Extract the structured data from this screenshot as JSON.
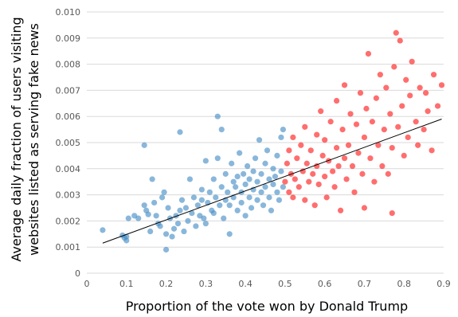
{
  "chart_data": {
    "type": "scatter",
    "xlabel": "Proportion of the vote won by Donald Trump",
    "ylabel_lines": [
      "Average daily fraction of users visiting",
      "websites listed as serving fake news"
    ],
    "xlim": [
      0,
      0.9
    ],
    "ylim": [
      0,
      0.01
    ],
    "x_ticks": [
      "0",
      "0.1",
      "0.2",
      "0.3",
      "0.4",
      "0.5",
      "0.6",
      "0.7",
      "0.8",
      "0.9"
    ],
    "y_ticks": [
      "0",
      "0.001",
      "0.002",
      "0.003",
      "0.004",
      "0.005",
      "0.006",
      "0.007",
      "0.008",
      "0.009",
      "0.010"
    ],
    "grid": "horizontal",
    "colors": {
      "below_half": "#4a90c8",
      "above_half": "#ff2020",
      "trend": "#000000"
    },
    "trendline": {
      "x": [
        0.04,
        0.895
      ],
      "y": [
        0.00115,
        0.0059
      ]
    },
    "series": [
      {
        "color": "#4a90c8",
        "points": [
          [
            0.04,
            0.00165
          ],
          [
            0.09,
            0.00145
          ],
          [
            0.095,
            0.00135
          ],
          [
            0.1,
            0.00125
          ],
          [
            0.1,
            0.0014
          ],
          [
            0.105,
            0.0021
          ],
          [
            0.12,
            0.0022
          ],
          [
            0.13,
            0.0021
          ],
          [
            0.145,
            0.0049
          ],
          [
            0.145,
            0.0026
          ],
          [
            0.15,
            0.0024
          ],
          [
            0.155,
            0.00225
          ],
          [
            0.16,
            0.0016
          ],
          [
            0.165,
            0.0036
          ],
          [
            0.17,
            0.0027
          ],
          [
            0.175,
            0.0022
          ],
          [
            0.18,
            0.0019
          ],
          [
            0.185,
            0.0018
          ],
          [
            0.19,
            0.0029
          ],
          [
            0.195,
            0.0031
          ],
          [
            0.2,
            0.0015
          ],
          [
            0.2,
            0.0009
          ],
          [
            0.205,
            0.0025
          ],
          [
            0.21,
            0.0021
          ],
          [
            0.215,
            0.0014
          ],
          [
            0.22,
            0.0017
          ],
          [
            0.225,
            0.0022
          ],
          [
            0.23,
            0.0019
          ],
          [
            0.235,
            0.0054
          ],
          [
            0.235,
            0.0024
          ],
          [
            0.24,
            0.0028
          ],
          [
            0.245,
            0.0016
          ],
          [
            0.25,
            0.0025
          ],
          [
            0.255,
            0.002
          ],
          [
            0.26,
            0.0036
          ],
          [
            0.265,
            0.0023
          ],
          [
            0.27,
            0.0029
          ],
          [
            0.275,
            0.0018
          ],
          [
            0.28,
            0.0026
          ],
          [
            0.285,
            0.0022
          ],
          [
            0.29,
            0.0032
          ],
          [
            0.29,
            0.0028
          ],
          [
            0.295,
            0.0021
          ],
          [
            0.3,
            0.0019
          ],
          [
            0.3,
            0.0043
          ],
          [
            0.305,
            0.0027
          ],
          [
            0.31,
            0.0031
          ],
          [
            0.315,
            0.0024
          ],
          [
            0.32,
            0.0036
          ],
          [
            0.32,
            0.0023
          ],
          [
            0.325,
            0.0029
          ],
          [
            0.33,
            0.0044
          ],
          [
            0.33,
            0.006
          ],
          [
            0.335,
            0.0026
          ],
          [
            0.34,
            0.0055
          ],
          [
            0.34,
            0.0033
          ],
          [
            0.345,
            0.0021
          ],
          [
            0.35,
            0.0038
          ],
          [
            0.35,
            0.0028
          ],
          [
            0.355,
            0.0031
          ],
          [
            0.36,
            0.0015
          ],
          [
            0.36,
            0.0026
          ],
          [
            0.365,
            0.0042
          ],
          [
            0.37,
            0.0035
          ],
          [
            0.37,
            0.0029
          ],
          [
            0.375,
            0.0033
          ],
          [
            0.38,
            0.0024
          ],
          [
            0.38,
            0.0037
          ],
          [
            0.385,
            0.0046
          ],
          [
            0.39,
            0.0031
          ],
          [
            0.39,
            0.0027
          ],
          [
            0.395,
            0.0038
          ],
          [
            0.4,
            0.0022
          ],
          [
            0.4,
            0.0034
          ],
          [
            0.405,
            0.0041
          ],
          [
            0.41,
            0.0029
          ],
          [
            0.41,
            0.0036
          ],
          [
            0.415,
            0.0025
          ],
          [
            0.42,
            0.0039
          ],
          [
            0.42,
            0.0032
          ],
          [
            0.425,
            0.0044
          ],
          [
            0.43,
            0.0028
          ],
          [
            0.43,
            0.0035
          ],
          [
            0.435,
            0.0051
          ],
          [
            0.44,
            0.0031
          ],
          [
            0.44,
            0.0038
          ],
          [
            0.445,
            0.0026
          ],
          [
            0.45,
            0.0042
          ],
          [
            0.45,
            0.0033
          ],
          [
            0.455,
            0.0047
          ],
          [
            0.46,
            0.0036
          ],
          [
            0.46,
            0.0029
          ],
          [
            0.465,
            0.0024
          ],
          [
            0.47,
            0.004
          ],
          [
            0.47,
            0.0034
          ],
          [
            0.475,
            0.0037
          ],
          [
            0.48,
            0.0031
          ],
          [
            0.48,
            0.0045
          ],
          [
            0.485,
            0.0028
          ],
          [
            0.49,
            0.0052
          ],
          [
            0.49,
            0.0039
          ],
          [
            0.495,
            0.0033
          ],
          [
            0.495,
            0.0055
          ]
        ]
      },
      {
        "color": "#ff2020",
        "points": [
          [
            0.5,
            0.0035
          ],
          [
            0.505,
            0.0042
          ],
          [
            0.51,
            0.0031
          ],
          [
            0.51,
            0.0047
          ],
          [
            0.515,
            0.0038
          ],
          [
            0.52,
            0.0029
          ],
          [
            0.52,
            0.0052
          ],
          [
            0.525,
            0.0036
          ],
          [
            0.53,
            0.0044
          ],
          [
            0.535,
            0.0033
          ],
          [
            0.54,
            0.0049
          ],
          [
            0.545,
            0.0039
          ],
          [
            0.55,
            0.0028
          ],
          [
            0.55,
            0.0056
          ],
          [
            0.555,
            0.0042
          ],
          [
            0.56,
            0.0035
          ],
          [
            0.565,
            0.0047
          ],
          [
            0.57,
            0.0038
          ],
          [
            0.575,
            0.0026
          ],
          [
            0.58,
            0.0053
          ],
          [
            0.58,
            0.0041
          ],
          [
            0.585,
            0.0034
          ],
          [
            0.59,
            0.0062
          ],
          [
            0.595,
            0.0045
          ],
          [
            0.6,
            0.0037
          ],
          [
            0.6,
            0.0051
          ],
          [
            0.605,
            0.0029
          ],
          [
            0.61,
            0.0043
          ],
          [
            0.615,
            0.0058
          ],
          [
            0.62,
            0.0039
          ],
          [
            0.625,
            0.0033
          ],
          [
            0.63,
            0.0066
          ],
          [
            0.63,
            0.0048
          ],
          [
            0.635,
            0.0041
          ],
          [
            0.64,
            0.0024
          ],
          [
            0.645,
            0.0055
          ],
          [
            0.65,
            0.0044
          ],
          [
            0.65,
            0.0072
          ],
          [
            0.655,
            0.0036
          ],
          [
            0.66,
            0.0049
          ],
          [
            0.665,
            0.0061
          ],
          [
            0.67,
            0.0041
          ],
          [
            0.675,
            0.0031
          ],
          [
            0.68,
            0.0057
          ],
          [
            0.685,
            0.0046
          ],
          [
            0.69,
            0.0069
          ],
          [
            0.695,
            0.0038
          ],
          [
            0.7,
            0.0052
          ],
          [
            0.7,
            0.0025
          ],
          [
            0.705,
            0.0063
          ],
          [
            0.71,
            0.0084
          ],
          [
            0.715,
            0.0044
          ],
          [
            0.72,
            0.0058
          ],
          [
            0.725,
            0.0035
          ],
          [
            0.73,
            0.0067
          ],
          [
            0.735,
            0.0049
          ],
          [
            0.74,
            0.0076
          ],
          [
            0.745,
            0.0041
          ],
          [
            0.75,
            0.0055
          ],
          [
            0.755,
            0.0071
          ],
          [
            0.76,
            0.0038
          ],
          [
            0.765,
            0.0061
          ],
          [
            0.77,
            0.0048
          ],
          [
            0.77,
            0.0023
          ],
          [
            0.775,
            0.0079
          ],
          [
            0.78,
            0.0092
          ],
          [
            0.785,
            0.0056
          ],
          [
            0.79,
            0.0089
          ],
          [
            0.795,
            0.0064
          ],
          [
            0.8,
            0.0045
          ],
          [
            0.805,
            0.0074
          ],
          [
            0.81,
            0.0052
          ],
          [
            0.815,
            0.0068
          ],
          [
            0.82,
            0.0081
          ],
          [
            0.83,
            0.0058
          ],
          [
            0.835,
            0.0049
          ],
          [
            0.84,
            0.0071
          ],
          [
            0.85,
            0.0055
          ],
          [
            0.855,
            0.0069
          ],
          [
            0.86,
            0.0062
          ],
          [
            0.87,
            0.0047
          ],
          [
            0.875,
            0.0076
          ],
          [
            0.885,
            0.0064
          ],
          [
            0.895,
            0.0072
          ]
        ]
      }
    ]
  }
}
